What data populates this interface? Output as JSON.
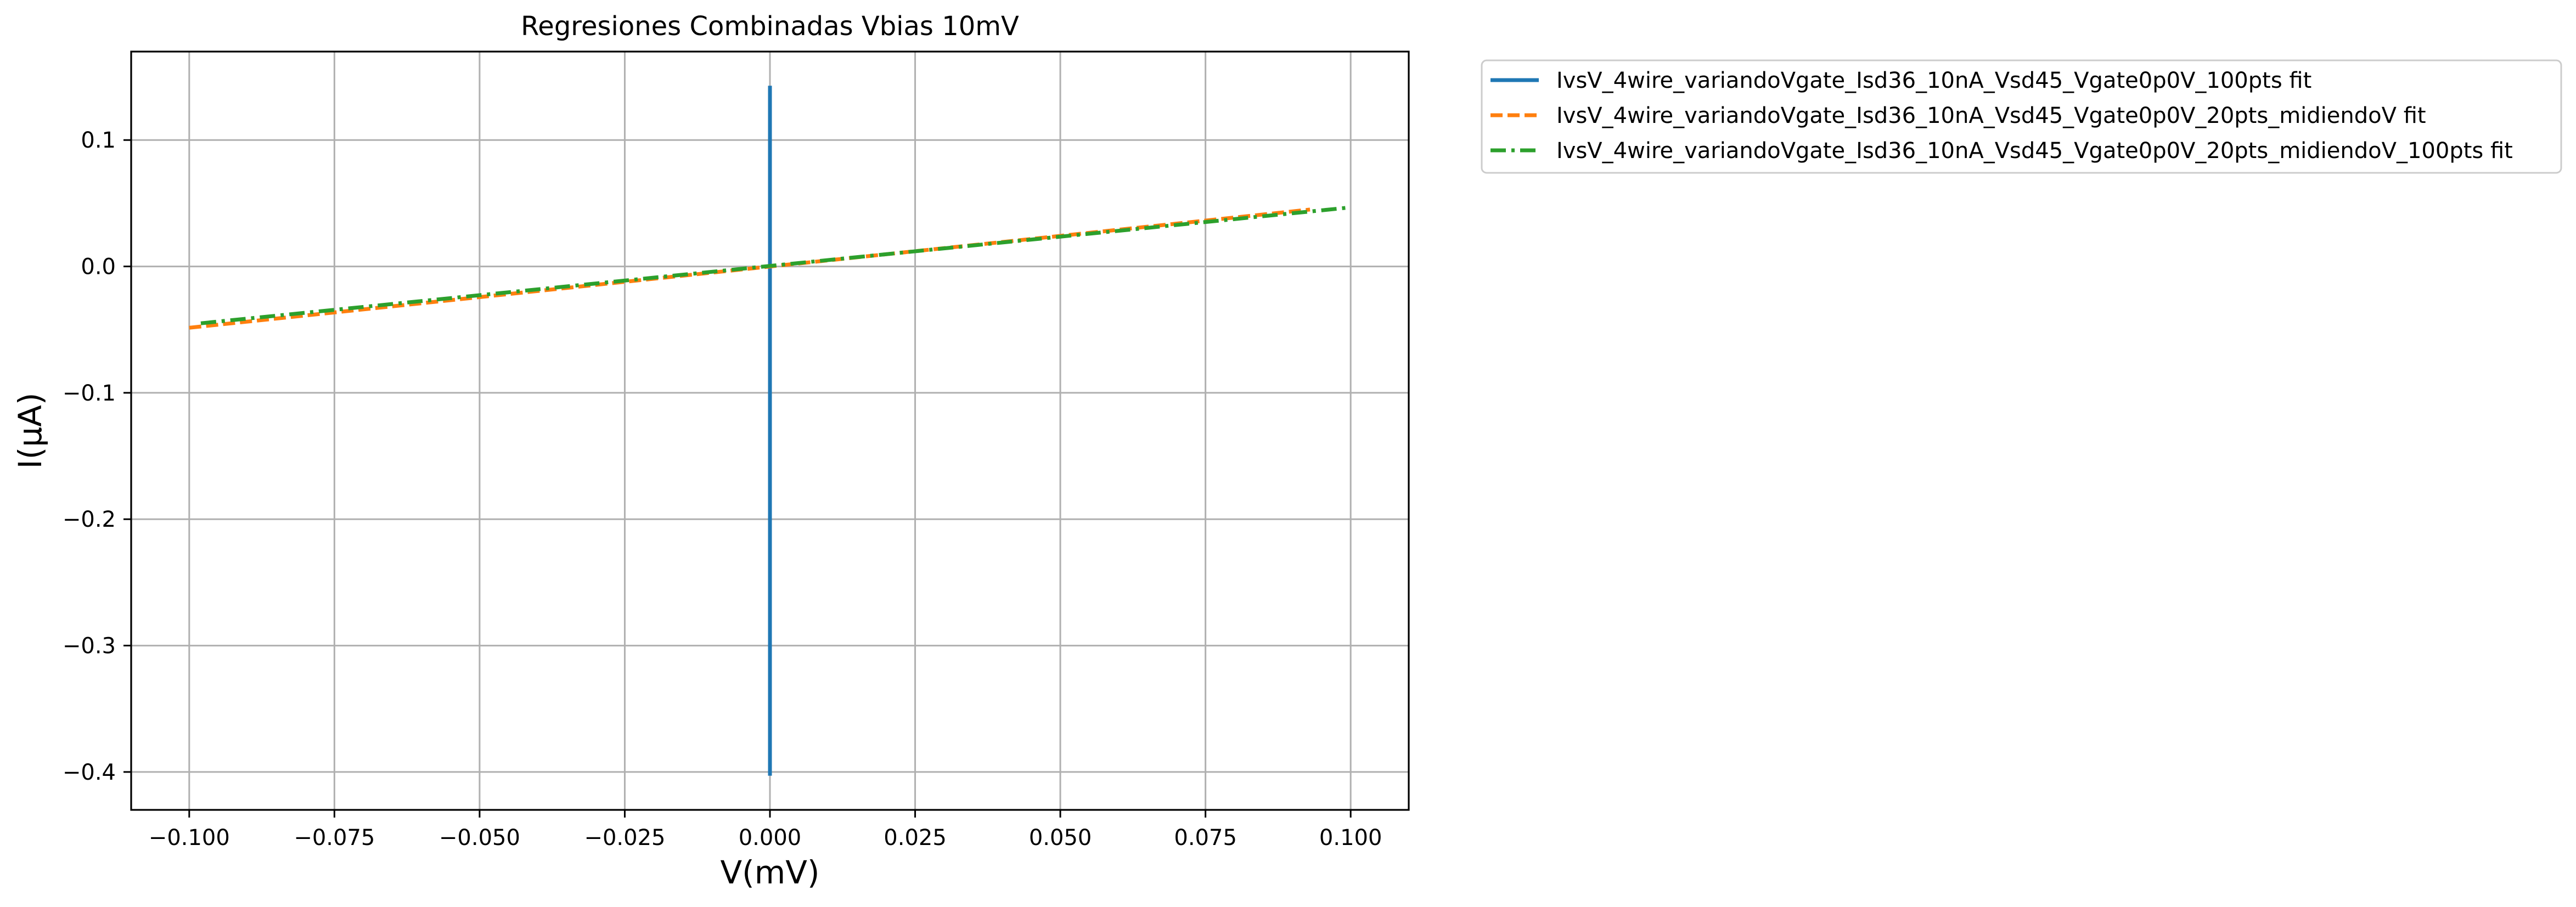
{
  "chart_data": {
    "type": "line",
    "title": "Regresiones Combinadas Vbias 10mV",
    "xlabel": "V(mV)",
    "ylabel": "I(μA)",
    "xlim": [
      -0.11,
      0.11
    ],
    "ylim": [
      -0.43,
      0.17
    ],
    "xticks": [
      -0.1,
      -0.075,
      -0.05,
      -0.025,
      0.0,
      0.025,
      0.05,
      0.075,
      0.1
    ],
    "xtick_labels": [
      "−0.100",
      "−0.075",
      "−0.050",
      "−0.025",
      "0.000",
      "0.025",
      "0.050",
      "0.075",
      "0.100"
    ],
    "yticks": [
      0.1,
      0.0,
      -0.1,
      -0.2,
      -0.3,
      -0.4
    ],
    "ytick_labels": [
      "0.1",
      "0.0",
      "−0.1",
      "−0.2",
      "−0.3",
      "−0.4"
    ],
    "grid": true,
    "legend_position": "outside-upper-right",
    "series": [
      {
        "name": "IvsV_4wire_variandoVgate_Isd36_10nA_Vsd45_Vgate0p0V_100pts fit",
        "color": "#1f77b4",
        "style": "solid",
        "x": [
          0.0,
          0.0
        ],
        "y": [
          -0.403,
          0.143
        ]
      },
      {
        "name": "IvsV_4wire_variandoVgate_Isd36_10nA_Vsd45_Vgate0p0V_20pts_midiendoV fit",
        "color": "#ff7f0e",
        "style": "dashed",
        "x": [
          -0.1,
          0.093
        ],
        "y": [
          -0.0485,
          0.045
        ]
      },
      {
        "name": "IvsV_4wire_variandoVgate_Isd36_10nA_Vsd45_Vgate0p0V_20pts_midiendoV_100pts fit",
        "color": "#2ca02c",
        "style": "dashdot",
        "x": [
          -0.098,
          0.0995
        ],
        "y": [
          -0.045,
          0.0465
        ]
      }
    ]
  }
}
